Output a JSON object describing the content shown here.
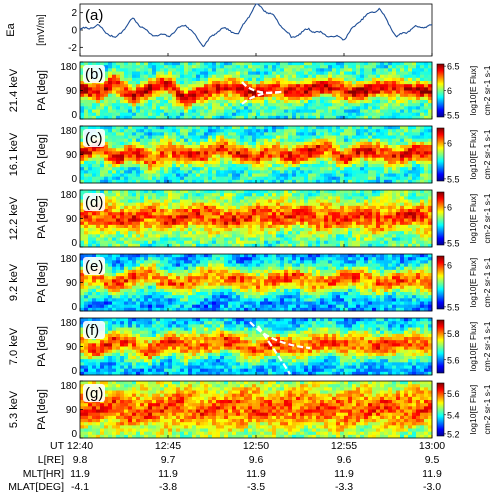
{
  "figure": {
    "background": "#ffffff"
  },
  "chart_data": [
    {
      "type": "line",
      "panel": "(a)",
      "ylabel": "Ea",
      "ylabel_unit": "[mV/m]",
      "yticks": [
        "2",
        "0",
        "-2"
      ],
      "ylim": [
        -3,
        3
      ],
      "xlim": [
        "12:40",
        "13:00"
      ],
      "line_color": "#1f4e96",
      "series": [
        {
          "x": [
            "12:40",
            "12:41",
            "12:42",
            "12:43",
            "12:44",
            "12:45",
            "12:46",
            "12:47",
            "12:48",
            "12:49",
            "12:50",
            "12:51",
            "12:52",
            "12:53",
            "12:54",
            "12:55",
            "12:56",
            "12:57",
            "12:58",
            "12:59",
            "13:00"
          ],
          "values": [
            0.0,
            0.5,
            -1.0,
            1.3,
            -0.5,
            -0.7,
            0.7,
            -1.8,
            0.2,
            -0.4,
            3.0,
            1.6,
            -0.9,
            0.1,
            -0.6,
            -1.0,
            1.3,
            2.5,
            -0.8,
            0.3,
            0.5
          ]
        }
      ]
    },
    {
      "type": "heatmap",
      "panel": "(b)",
      "energy_label": "21.4 keV",
      "ylabel": "PA [deg]",
      "yticks": [
        "180",
        "90",
        "0"
      ],
      "colorbar_ticks": [
        "6.5",
        "6",
        "5.5"
      ],
      "colorbar_label": "log10[E Flux]",
      "colorbar_unit": "cm-2 sr-1 s-1",
      "color_range": [
        5.5,
        6.5
      ],
      "annotation": "white dashed curve near 12:50",
      "band_center_deg": [
        100,
        80,
        115,
        70,
        95,
        110,
        60,
        80,
        95,
        100,
        80,
        95,
        90,
        95,
        100,
        90,
        85,
        95,
        100,
        90,
        85
      ],
      "band_width_deg": 30,
      "band_peak": 0.9,
      "background_level": 0.42
    },
    {
      "type": "heatmap",
      "panel": "(c)",
      "energy_label": "16.1 keV",
      "ylabel": "PA [deg]",
      "yticks": [
        "180",
        "90",
        "0"
      ],
      "colorbar_ticks": [
        "6",
        "5.5"
      ],
      "colorbar_label": "log10[E Flux]",
      "colorbar_unit": "cm-2 sr-1 s-1",
      "color_range": [
        5.5,
        6.2
      ],
      "band_center_deg": [
        95,
        110,
        80,
        100,
        70,
        105,
        90,
        85,
        110,
        95,
        75,
        100,
        85,
        95,
        110,
        80,
        100,
        95,
        85,
        100,
        90
      ],
      "band_width_deg": 32,
      "band_peak": 0.85,
      "background_level": 0.4
    },
    {
      "type": "heatmap",
      "panel": "(d)",
      "energy_label": "12.2 keV",
      "ylabel": "PA [deg]",
      "yticks": [
        "180",
        "90",
        "0"
      ],
      "colorbar_ticks": [
        "6",
        "5.5"
      ],
      "colorbar_label": "log10[E Flux]",
      "colorbar_unit": "cm-2 sr-1 s-1",
      "color_range": [
        5.5,
        6.2
      ],
      "band_center_deg": [
        90,
        100,
        95,
        85,
        100,
        90,
        95,
        100,
        90,
        85,
        95,
        100,
        105,
        95,
        90,
        100,
        95,
        90,
        100,
        95,
        90
      ],
      "band_width_deg": 45,
      "band_peak": 0.82,
      "background_level": 0.45
    },
    {
      "type": "heatmap",
      "panel": "(e)",
      "energy_label": "9.2 keV",
      "ylabel": "PA [deg]",
      "yticks": [
        "180",
        "90",
        "0"
      ],
      "colorbar_ticks": [
        "6",
        "5.5"
      ],
      "colorbar_label": "log10[E Flux]",
      "colorbar_unit": "cm-2 sr-1 s-1",
      "color_range": [
        5.5,
        6.1
      ],
      "band_center_deg": [
        95,
        110,
        85,
        100,
        120,
        90,
        80,
        105,
        115,
        95,
        85,
        100,
        110,
        90,
        95,
        105,
        100,
        90,
        95,
        100,
        95
      ],
      "band_width_deg": 40,
      "band_peak": 0.78,
      "background_level": 0.28
    },
    {
      "type": "heatmap",
      "panel": "(f)",
      "energy_label": "7.0 keV",
      "ylabel": "PA [deg]",
      "yticks": [
        "180",
        "90",
        "0"
      ],
      "colorbar_ticks": [
        "5.8",
        "5.6"
      ],
      "colorbar_label": "log10[E Flux]",
      "colorbar_unit": "cm-2 sr-1 s-1",
      "color_range": [
        5.5,
        5.9
      ],
      "annotation": "white dashed curve 12:50-12:53",
      "band_center_deg": [
        100,
        85,
        110,
        95,
        80,
        105,
        90,
        100,
        115,
        95,
        80,
        100,
        85,
        95,
        110,
        90,
        100,
        95,
        90,
        100,
        95
      ],
      "band_width_deg": 42,
      "band_peak": 0.8,
      "background_level": 0.3
    },
    {
      "type": "heatmap",
      "panel": "(g)",
      "energy_label": "5.3 keV",
      "ylabel": "PA [deg]",
      "yticks": [
        "180",
        "90",
        "0"
      ],
      "colorbar_ticks": [
        "5.6",
        "5.4",
        "5.2"
      ],
      "colorbar_label": "log10[E Flux]",
      "colorbar_unit": "cm-2 sr-1 s-1",
      "color_range": [
        5.2,
        5.7
      ],
      "band_center_deg": [
        90,
        95,
        100,
        85,
        90,
        95,
        105,
        90,
        85,
        95,
        100,
        90,
        95,
        100,
        85,
        90,
        100,
        95,
        90,
        95,
        100
      ],
      "band_width_deg": 60,
      "band_peak": 0.8,
      "background_level": 0.5
    }
  ],
  "x_axis": {
    "row_labels": [
      "UT",
      "L[RE]",
      "MLT[HR]",
      "MLAT[DEG]"
    ],
    "columns": [
      {
        "UT": "12:40",
        "L": "9.8",
        "MLT": "11.9",
        "MLAT": "-4.1"
      },
      {
        "UT": "12:45",
        "L": "9.7",
        "MLT": "11.9",
        "MLAT": "-3.8"
      },
      {
        "UT": "12:50",
        "L": "9.6",
        "MLT": "11.9",
        "MLAT": "-3.5"
      },
      {
        "UT": "12:55",
        "L": "9.6",
        "MLT": "11.9",
        "MLAT": "-3.3"
      },
      {
        "UT": "13:00",
        "L": "9.5",
        "MLT": "11.9",
        "MLAT": "-3.0"
      }
    ]
  }
}
